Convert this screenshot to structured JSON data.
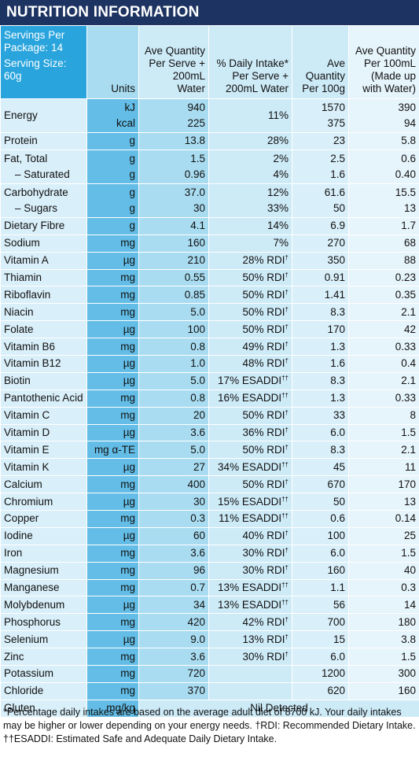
{
  "title": "NUTRITION INFORMATION",
  "header": {
    "servings_per_package": "Servings Per Package: 14",
    "serving_size": "Serving Size: 60g",
    "units": "Units",
    "ave_serve": "Ave Quantity Per Serve + 200mL Water",
    "daily_intake": "% Daily Intake* Per Serve + 200mL Water",
    "ave_100g": "Ave Quantity Per 100g",
    "ave_100ml": "Ave Quantity Per 100mL (Made up with Water)"
  },
  "rows": [
    {
      "name": [
        "Energy",
        ""
      ],
      "unit": [
        "kJ",
        "kcal"
      ],
      "serve": [
        "940",
        "225"
      ],
      "di": [
        "11%",
        ""
      ],
      "g100": [
        "1570",
        "375"
      ],
      "ml100": [
        "390",
        "94"
      ]
    },
    {
      "name": [
        "Protein"
      ],
      "unit": [
        "g"
      ],
      "serve": [
        "13.8"
      ],
      "di": [
        "28%"
      ],
      "g100": [
        "23"
      ],
      "ml100": [
        "5.8"
      ]
    },
    {
      "name": [
        "Fat, Total",
        "– Saturated"
      ],
      "unit": [
        "g",
        "g"
      ],
      "serve": [
        "1.5",
        "0.96"
      ],
      "di": [
        "2%",
        "4%"
      ],
      "g100": [
        "2.5",
        "1.6"
      ],
      "ml100": [
        "0.6",
        "0.40"
      ]
    },
    {
      "name": [
        "Carbohydrate",
        "– Sugars"
      ],
      "unit": [
        "g",
        "g"
      ],
      "serve": [
        "37.0",
        "30"
      ],
      "di": [
        "12%",
        "33%"
      ],
      "g100": [
        "61.6",
        "50"
      ],
      "ml100": [
        "15.5",
        "13"
      ]
    },
    {
      "name": [
        "Dietary Fibre"
      ],
      "unit": [
        "g"
      ],
      "serve": [
        "4.1"
      ],
      "di": [
        "14%"
      ],
      "g100": [
        "6.9"
      ],
      "ml100": [
        "1.7"
      ]
    },
    {
      "name": [
        "Sodium"
      ],
      "unit": [
        "mg"
      ],
      "serve": [
        "160"
      ],
      "di": [
        "7%"
      ],
      "g100": [
        "270"
      ],
      "ml100": [
        "68"
      ]
    },
    {
      "name": [
        "Vitamin A"
      ],
      "unit": [
        "µg"
      ],
      "serve": [
        "210"
      ],
      "di": [
        "28% RDI"
      ],
      "mark": "†",
      "g100": [
        "350"
      ],
      "ml100": [
        "88"
      ]
    },
    {
      "name": [
        "Thiamin"
      ],
      "unit": [
        "mg"
      ],
      "serve": [
        "0.55"
      ],
      "di": [
        "50% RDI"
      ],
      "mark": "†",
      "g100": [
        "0.91"
      ],
      "ml100": [
        "0.23"
      ]
    },
    {
      "name": [
        "Riboflavin"
      ],
      "unit": [
        "mg"
      ],
      "serve": [
        "0.85"
      ],
      "di": [
        "50% RDI"
      ],
      "mark": "†",
      "g100": [
        "1.41"
      ],
      "ml100": [
        "0.35"
      ]
    },
    {
      "name": [
        "Niacin"
      ],
      "unit": [
        "mg"
      ],
      "serve": [
        "5.0"
      ],
      "di": [
        "50% RDI"
      ],
      "mark": "†",
      "g100": [
        "8.3"
      ],
      "ml100": [
        "2.1"
      ]
    },
    {
      "name": [
        "Folate"
      ],
      "unit": [
        "µg"
      ],
      "serve": [
        "100"
      ],
      "di": [
        "50% RDI"
      ],
      "mark": "†",
      "g100": [
        "170"
      ],
      "ml100": [
        "42"
      ]
    },
    {
      "name": [
        "Vitamin B6"
      ],
      "unit": [
        "mg"
      ],
      "serve": [
        "0.8"
      ],
      "di": [
        "49% RDI"
      ],
      "mark": "†",
      "g100": [
        "1.3"
      ],
      "ml100": [
        "0.33"
      ]
    },
    {
      "name": [
        "Vitamin B12"
      ],
      "unit": [
        "µg"
      ],
      "serve": [
        "1.0"
      ],
      "di": [
        "48% RDI"
      ],
      "mark": "†",
      "g100": [
        "1.6"
      ],
      "ml100": [
        "0.4"
      ]
    },
    {
      "name": [
        "Biotin"
      ],
      "unit": [
        "µg"
      ],
      "serve": [
        "5.0"
      ],
      "di": [
        "17% ESADDI"
      ],
      "mark": "††",
      "g100": [
        "8.3"
      ],
      "ml100": [
        "2.1"
      ]
    },
    {
      "name": [
        "Pantothenic Acid"
      ],
      "unit": [
        "mg"
      ],
      "serve": [
        "0.8"
      ],
      "di": [
        "16% ESADDI"
      ],
      "mark": "††",
      "g100": [
        "1.3"
      ],
      "ml100": [
        "0.33"
      ]
    },
    {
      "name": [
        "Vitamin C"
      ],
      "unit": [
        "mg"
      ],
      "serve": [
        "20"
      ],
      "di": [
        "50% RDI"
      ],
      "mark": "†",
      "g100": [
        "33"
      ],
      "ml100": [
        "8"
      ]
    },
    {
      "name": [
        "Vitamin D"
      ],
      "unit": [
        "µg"
      ],
      "serve": [
        "3.6"
      ],
      "di": [
        "36% RDI"
      ],
      "mark": "†",
      "g100": [
        "6.0"
      ],
      "ml100": [
        "1.5"
      ]
    },
    {
      "name": [
        "Vitamin E"
      ],
      "unit": [
        "mg α-TE"
      ],
      "serve": [
        "5.0"
      ],
      "di": [
        "50% RDI"
      ],
      "mark": "†",
      "g100": [
        "8.3"
      ],
      "ml100": [
        "2.1"
      ]
    },
    {
      "name": [
        "Vitamin K"
      ],
      "unit": [
        "µg"
      ],
      "serve": [
        "27"
      ],
      "di": [
        "34% ESADDI"
      ],
      "mark": "††",
      "g100": [
        "45"
      ],
      "ml100": [
        "11"
      ]
    },
    {
      "name": [
        "Calcium"
      ],
      "unit": [
        "mg"
      ],
      "serve": [
        "400"
      ],
      "di": [
        "50% RDI"
      ],
      "mark": "†",
      "g100": [
        "670"
      ],
      "ml100": [
        "170"
      ]
    },
    {
      "name": [
        "Chromium"
      ],
      "unit": [
        "µg"
      ],
      "serve": [
        "30"
      ],
      "di": [
        "15% ESADDI"
      ],
      "mark": "††",
      "g100": [
        "50"
      ],
      "ml100": [
        "13"
      ]
    },
    {
      "name": [
        "Copper"
      ],
      "unit": [
        "mg"
      ],
      "serve": [
        "0.3"
      ],
      "di": [
        "11% ESADDI"
      ],
      "mark": "††",
      "g100": [
        "0.6"
      ],
      "ml100": [
        "0.14"
      ]
    },
    {
      "name": [
        "Iodine"
      ],
      "unit": [
        "µg"
      ],
      "serve": [
        "60"
      ],
      "di": [
        "40% RDI"
      ],
      "mark": "†",
      "g100": [
        "100"
      ],
      "ml100": [
        "25"
      ]
    },
    {
      "name": [
        "Iron"
      ],
      "unit": [
        "mg"
      ],
      "serve": [
        "3.6"
      ],
      "di": [
        "30% RDI"
      ],
      "mark": "†",
      "g100": [
        "6.0"
      ],
      "ml100": [
        "1.5"
      ]
    },
    {
      "name": [
        "Magnesium"
      ],
      "unit": [
        "mg"
      ],
      "serve": [
        "96"
      ],
      "di": [
        "30% RDI"
      ],
      "mark": "†",
      "g100": [
        "160"
      ],
      "ml100": [
        "40"
      ]
    },
    {
      "name": [
        "Manganese"
      ],
      "unit": [
        "mg"
      ],
      "serve": [
        "0.7"
      ],
      "di": [
        "13% ESADDI"
      ],
      "mark": "††",
      "g100": [
        "1.1"
      ],
      "ml100": [
        "0.3"
      ]
    },
    {
      "name": [
        "Molybdenum"
      ],
      "unit": [
        "µg"
      ],
      "serve": [
        "34"
      ],
      "di": [
        "13% ESADDI"
      ],
      "mark": "††",
      "g100": [
        "56"
      ],
      "ml100": [
        "14"
      ]
    },
    {
      "name": [
        "Phosphorus"
      ],
      "unit": [
        "mg"
      ],
      "serve": [
        "420"
      ],
      "di": [
        "42% RDI"
      ],
      "mark": "†",
      "g100": [
        "700"
      ],
      "ml100": [
        "180"
      ]
    },
    {
      "name": [
        "Selenium"
      ],
      "unit": [
        "µg"
      ],
      "serve": [
        "9.0"
      ],
      "di": [
        "13% RDI"
      ],
      "mark": "†",
      "g100": [
        "15"
      ],
      "ml100": [
        "3.8"
      ]
    },
    {
      "name": [
        "Zinc"
      ],
      "unit": [
        "mg"
      ],
      "serve": [
        "3.6"
      ],
      "di": [
        "30% RDI"
      ],
      "mark": "†",
      "g100": [
        "6.0"
      ],
      "ml100": [
        "1.5"
      ]
    },
    {
      "name": [
        "Potassium"
      ],
      "unit": [
        "mg"
      ],
      "serve": [
        "720"
      ],
      "di": [
        ""
      ],
      "g100": [
        "1200"
      ],
      "ml100": [
        "300"
      ]
    },
    {
      "name": [
        "Chloride"
      ],
      "unit": [
        "mg"
      ],
      "serve": [
        "370"
      ],
      "di": [
        ""
      ],
      "g100": [
        "620"
      ],
      "ml100": [
        "160"
      ]
    }
  ],
  "gluten": {
    "name": "Gluten",
    "unit": "mg/kg",
    "value": "Nil Detected"
  },
  "footnote": {
    "line1": "*Percentage daily intakes are based on the average adult diet of 8700 kJ. Your daily intakes may be higher or lower depending on your energy needs. †RDI: Recommended Dietary Intake.",
    "line2": "††ESADDI: Estimated Safe and Adequate Daily Dietary Intake."
  },
  "colors": {
    "title_bg": "#1d3361",
    "servings_bg": "#29a4dd",
    "units_col": "#63bde6",
    "serve_col": "#a9dcf1",
    "light_col": "#cdeaf7",
    "lightest_col": "#e6f4fb"
  }
}
